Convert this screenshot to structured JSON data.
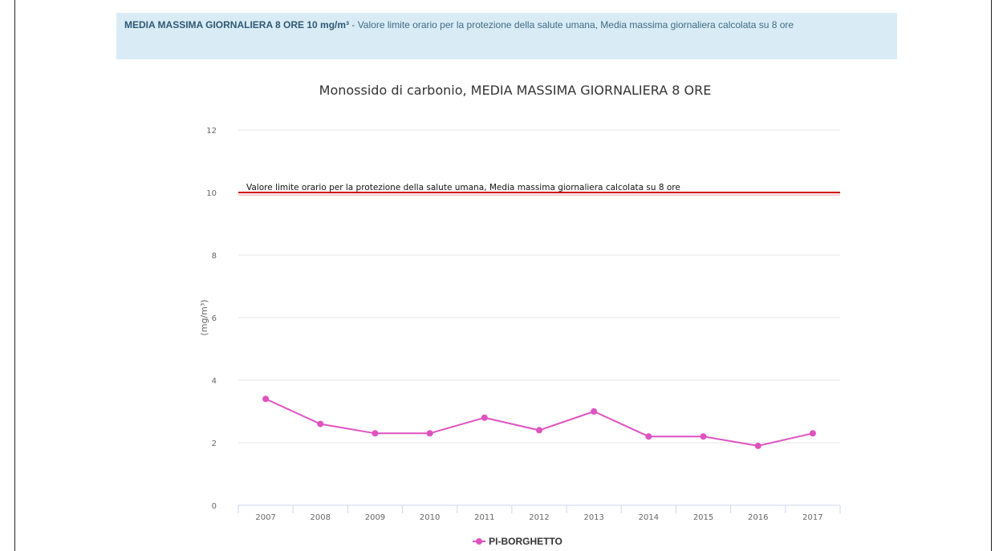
{
  "info": {
    "title": "MEDIA MASSIMA GIORNALIERA 8 ORE 10 mg/m³",
    "description": " - Valore limite orario per la protezione della salute umana, Media massima giornaliera calcolata su 8 ore"
  },
  "chart_data": {
    "type": "line",
    "title": "Monossido di carbonio, MEDIA MASSIMA GIORNALIERA 8 ORE",
    "xlabel": "",
    "ylabel": "(mg/m³)",
    "ylim": [
      0,
      12
    ],
    "yticks": [
      0,
      2,
      4,
      6,
      8,
      10,
      12
    ],
    "categories": [
      "2007",
      "2008",
      "2009",
      "2010",
      "2011",
      "2012",
      "2013",
      "2014",
      "2015",
      "2016",
      "2017"
    ],
    "series": [
      {
        "name": "PI-BORGHETTO",
        "color": "#e052c0",
        "values": [
          3.4,
          2.6,
          2.3,
          2.3,
          2.8,
          2.4,
          3.0,
          2.2,
          2.2,
          1.9,
          2.3
        ]
      }
    ],
    "threshold": {
      "value": 10,
      "color": "#cc0000",
      "label": "Valore limite orario per la protezione della salute umana, Media massima giornaliera calcolata su 8 ore"
    },
    "grid": true,
    "legend": "bottom-center"
  }
}
